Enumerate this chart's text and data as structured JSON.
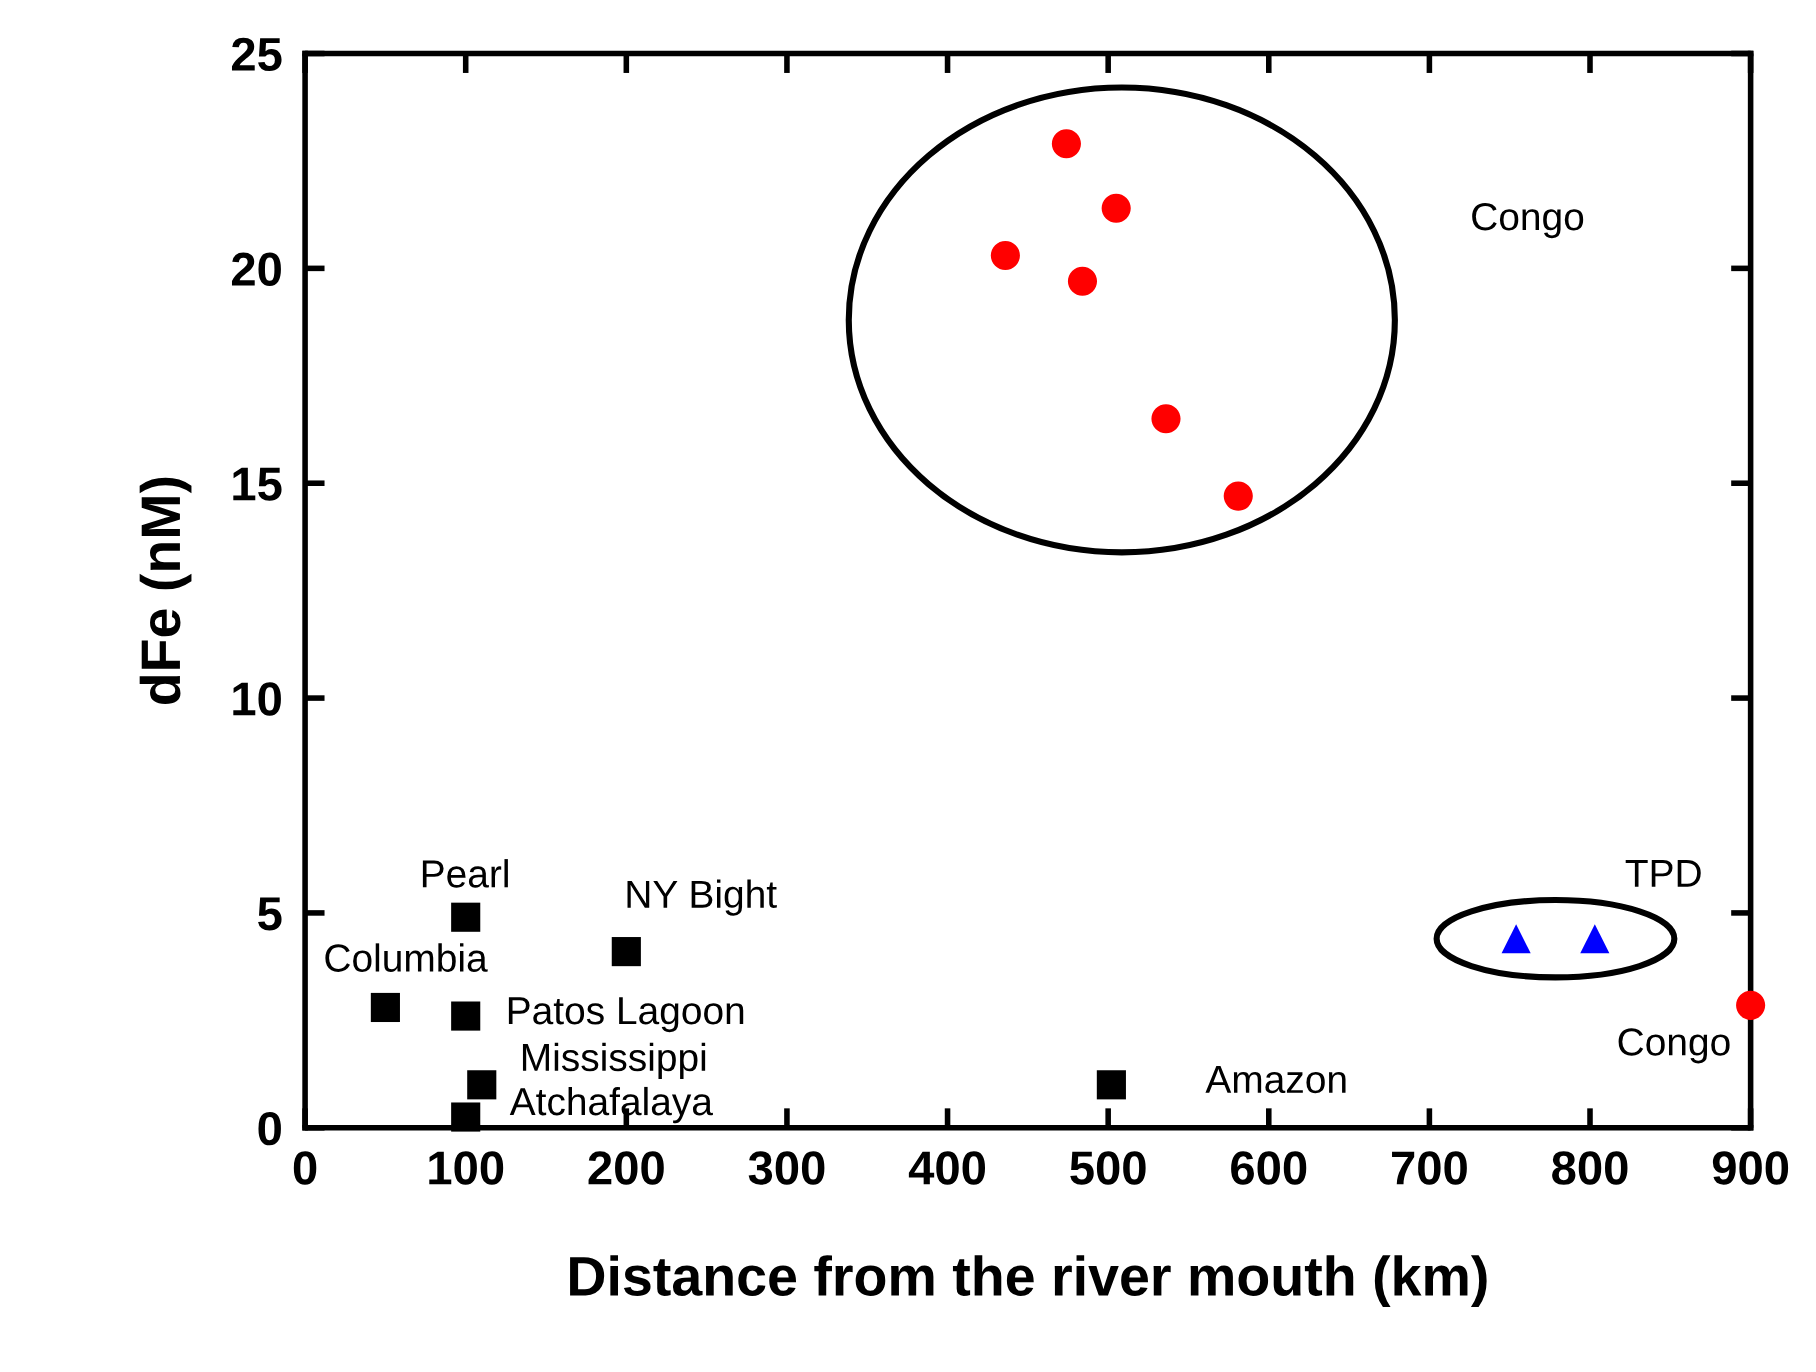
{
  "chart_data": {
    "type": "scatter",
    "xlabel": "Distance from the river mouth (km)",
    "ylabel": "dFe (nM)",
    "xlim": [
      0,
      900
    ],
    "ylim": [
      0,
      25
    ],
    "xticks": [
      0,
      100,
      200,
      300,
      400,
      500,
      600,
      700,
      800,
      900
    ],
    "yticks": [
      0,
      5,
      10,
      15,
      20,
      25
    ],
    "grid": false,
    "legend": false,
    "series": [
      {
        "color": "#000000",
        "marker": "square",
        "x": [
          100,
          200,
          50,
          100,
          110,
          100,
          502
        ],
        "values": [
          4.9,
          4.1,
          2.8,
          2.6,
          1.0,
          0.25,
          1.0
        ]
      },
      {
        "color": "#ff0000",
        "marker": "circle",
        "x": [
          474,
          505,
          436,
          484,
          536,
          581
        ],
        "values": [
          22.9,
          21.4,
          20.3,
          19.7,
          16.5,
          14.7
        ]
      },
      {
        "color": "#0000ff",
        "marker": "triangle",
        "x": [
          754,
          803
        ],
        "values": [
          4.4,
          4.4
        ]
      },
      {
        "color": "#ff0000",
        "marker": "circle",
        "x": [
          900
        ],
        "values": [
          2.85
        ]
      }
    ],
    "annotations": [
      "Congo",
      {
        "text": "TPD",
        "x": 803,
        "y": 4.4
      },
      {
        "text": "Congo",
        "x": 900,
        "y": 2.85
      },
      {
        "text": "Pearl",
        "x": 100,
        "y": 4.9
      },
      {
        "text": "NY Bight",
        "x": 200,
        "y": 4.1
      },
      {
        "text": "Columbia",
        "x": 50,
        "y": 2.8
      },
      {
        "text": "Patos Lagoon",
        "x": 100,
        "y": 2.6
      },
      {
        "text": "Mississippi",
        "x": 110,
        "y": 1.0
      },
      {
        "text": "Atchafalaya",
        "x": 100,
        "y": 0.25
      },
      {
        "text": "Amazon",
        "x": 502,
        "y": 1.0
      }
    ]
  }
}
